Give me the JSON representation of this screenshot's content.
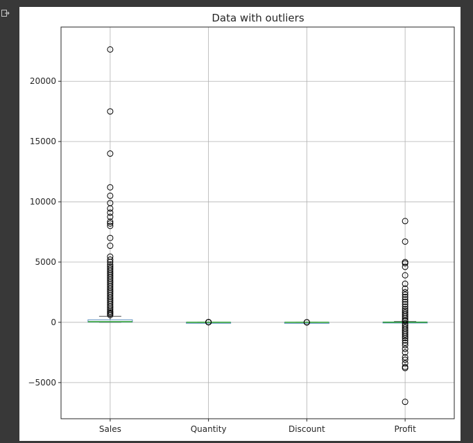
{
  "cell": {
    "output_icon": "output-redirect-icon"
  },
  "chart_data": {
    "type": "box",
    "title": "Data with outliers",
    "xlabel": "",
    "ylabel": "",
    "ylim": [
      -8000,
      24500
    ],
    "yticks": [
      -5000,
      0,
      5000,
      10000,
      15000,
      20000
    ],
    "ytick_labels": [
      "−5000",
      "0",
      "5000",
      "10000",
      "15000",
      "20000"
    ],
    "grid": true,
    "colors": {
      "box": "#5b8fbf",
      "median": "#2ca02c",
      "whisker": "#4a4a4a",
      "flier": "#000000",
      "grid": "#b0b0b0"
    },
    "categories": [
      "Sales",
      "Quantity",
      "Discount",
      "Profit"
    ],
    "boxes": [
      {
        "name": "Sales",
        "whislo": 0.4,
        "q1": 17,
        "med": 54,
        "q3": 210,
        "whishi": 500,
        "fliers": [
          22638,
          17500,
          13999,
          11200,
          10500,
          9900,
          9450,
          9100,
          8750,
          8350,
          8200,
          8000,
          7000,
          6350,
          5450,
          5200,
          5000,
          4800,
          4650,
          4500,
          4350,
          4200,
          4050,
          3900,
          3750,
          3600,
          3450,
          3300,
          3150,
          3000,
          2850,
          2700,
          2550,
          2400,
          2250,
          2100,
          1950,
          1800,
          1650,
          1500,
          1350,
          1200,
          1050,
          900,
          800,
          700,
          600
        ]
      },
      {
        "name": "Quantity",
        "whislo": 1,
        "q1": 2,
        "med": 3,
        "q3": 5,
        "whishi": 9,
        "fliers": [
          10,
          11,
          12,
          13,
          14
        ]
      },
      {
        "name": "Discount",
        "whislo": 0,
        "q1": 0,
        "med": 0.2,
        "q3": 0.2,
        "whishi": 0.5,
        "fliers": [
          0.6,
          0.7,
          0.8
        ]
      },
      {
        "name": "Profit",
        "whislo": -39,
        "q1": 1.7,
        "med": 8.7,
        "q3": 29,
        "whishi": 70,
        "fliers": [
          8400,
          6700,
          5000,
          4900,
          4600,
          3900,
          3200,
          2800,
          2500,
          2300,
          2100,
          1900,
          1700,
          1500,
          1300,
          1100,
          950,
          800,
          650,
          500,
          350,
          200,
          100,
          -100,
          -250,
          -400,
          -550,
          -700,
          -850,
          -1000,
          -1150,
          -1300,
          -1500,
          -1700,
          -1900,
          -2200,
          -2500,
          -2900,
          -3100,
          -3400,
          -3700,
          -3800,
          -6600
        ]
      }
    ]
  }
}
